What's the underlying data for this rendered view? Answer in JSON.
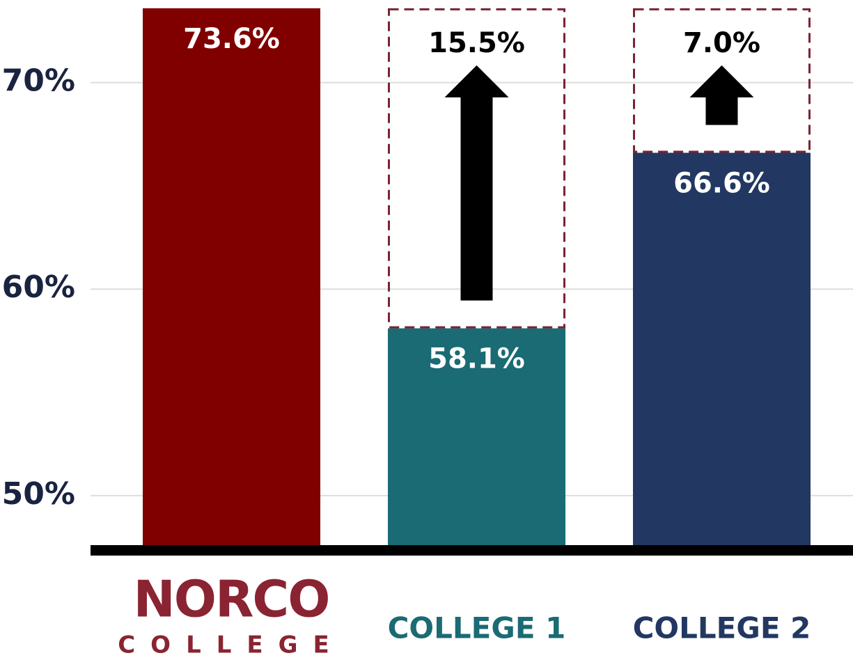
{
  "chart_data": {
    "type": "bar",
    "categories": [
      null,
      "COLLEGE 1",
      "COLLEGE 2"
    ],
    "logo": {
      "top": "NORCO",
      "bottom": "COLLEGE",
      "color": "#8a2432"
    },
    "values": [
      73.6,
      58.1,
      66.6
    ],
    "value_labels": [
      "73.6%",
      "58.1%",
      "66.6%"
    ],
    "colors": [
      "#800000",
      "#1a6b73",
      "#223862"
    ],
    "gaps": {
      "values": [
        null,
        15.5,
        7.0
      ],
      "value_labels": [
        null,
        "15.5%",
        "7.0%"
      ],
      "color": "#7a2333"
    },
    "ylim": [
      47.6,
      74
    ],
    "yticks": [
      {
        "value": 50,
        "label": "50%"
      },
      {
        "value": 60,
        "label": "60%"
      },
      {
        "value": 70,
        "label": "70%"
      }
    ],
    "grid": true
  }
}
